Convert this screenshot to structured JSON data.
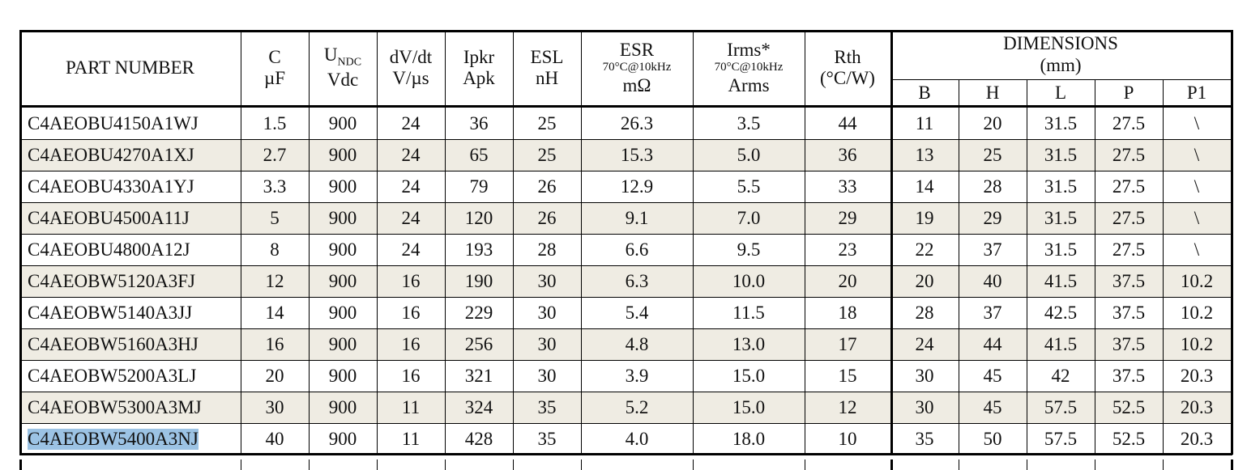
{
  "headers": [
    {
      "lines": [
        "PART NUMBER"
      ]
    },
    {
      "lines": [
        "C",
        "µF"
      ]
    },
    {
      "symbol": "U",
      "subscript": "NDC",
      "lines": [
        "Vdc"
      ]
    },
    {
      "lines": [
        "dV/dt",
        "V/µs"
      ]
    },
    {
      "lines": [
        "Ipkr",
        "Apk"
      ]
    },
    {
      "lines": [
        "ESL",
        "nH"
      ]
    },
    {
      "lines": [
        "ESR",
        "70°C@10kHz",
        "mΩ"
      ]
    },
    {
      "lines": [
        "Irms*",
        "70°C@10kHz",
        "Arms"
      ]
    },
    {
      "lines": [
        "Rth",
        "(°C/W)"
      ]
    }
  ],
  "dimensions": {
    "title": "DIMENSIONS",
    "unit": "(mm)",
    "columns": [
      "B",
      "H",
      "L",
      "P",
      "P1"
    ]
  },
  "rows": [
    [
      "C4AEOBU4150A1WJ",
      "1.5",
      "900",
      "24",
      "36",
      "25",
      "26.3",
      "3.5",
      "44",
      "11",
      "20",
      "31.5",
      "27.5",
      "\\"
    ],
    [
      "C4AEOBU4270A1XJ",
      "2.7",
      "900",
      "24",
      "65",
      "25",
      "15.3",
      "5.0",
      "36",
      "13",
      "25",
      "31.5",
      "27.5",
      "\\"
    ],
    [
      "C4AEOBU4330A1YJ",
      "3.3",
      "900",
      "24",
      "79",
      "26",
      "12.9",
      "5.5",
      "33",
      "14",
      "28",
      "31.5",
      "27.5",
      "\\"
    ],
    [
      "C4AEOBU4500A11J",
      "5",
      "900",
      "24",
      "120",
      "26",
      "9.1",
      "7.0",
      "29",
      "19",
      "29",
      "31.5",
      "27.5",
      "\\"
    ],
    [
      "C4AEOBU4800A12J",
      "8",
      "900",
      "24",
      "193",
      "28",
      "6.6",
      "9.5",
      "23",
      "22",
      "37",
      "31.5",
      "27.5",
      "\\"
    ],
    [
      "C4AEOBW5120A3FJ",
      "12",
      "900",
      "16",
      "190",
      "30",
      "6.3",
      "10.0",
      "20",
      "20",
      "40",
      "41.5",
      "37.5",
      "10.2"
    ],
    [
      "C4AEOBW5140A3JJ",
      "14",
      "900",
      "16",
      "229",
      "30",
      "5.4",
      "11.5",
      "18",
      "28",
      "37",
      "42.5",
      "37.5",
      "10.2"
    ],
    [
      "C4AEOBW5160A3HJ",
      "16",
      "900",
      "16",
      "256",
      "30",
      "4.8",
      "13.0",
      "17",
      "24",
      "44",
      "41.5",
      "37.5",
      "10.2"
    ],
    [
      "C4AEOBW5200A3LJ",
      "20",
      "900",
      "16",
      "321",
      "30",
      "3.9",
      "15.0",
      "15",
      "30",
      "45",
      "42",
      "37.5",
      "20.3"
    ],
    [
      "C4AEOBW5300A3MJ",
      "30",
      "900",
      "11",
      "324",
      "35",
      "5.2",
      "15.0",
      "12",
      "30",
      "45",
      "57.5",
      "52.5",
      "20.3"
    ],
    [
      "C4AEOBW5400A3NJ",
      "40",
      "900",
      "11",
      "428",
      "35",
      "4.0",
      "18.0",
      "10",
      "35",
      "50",
      "57.5",
      "52.5",
      "20.3"
    ]
  ]
}
